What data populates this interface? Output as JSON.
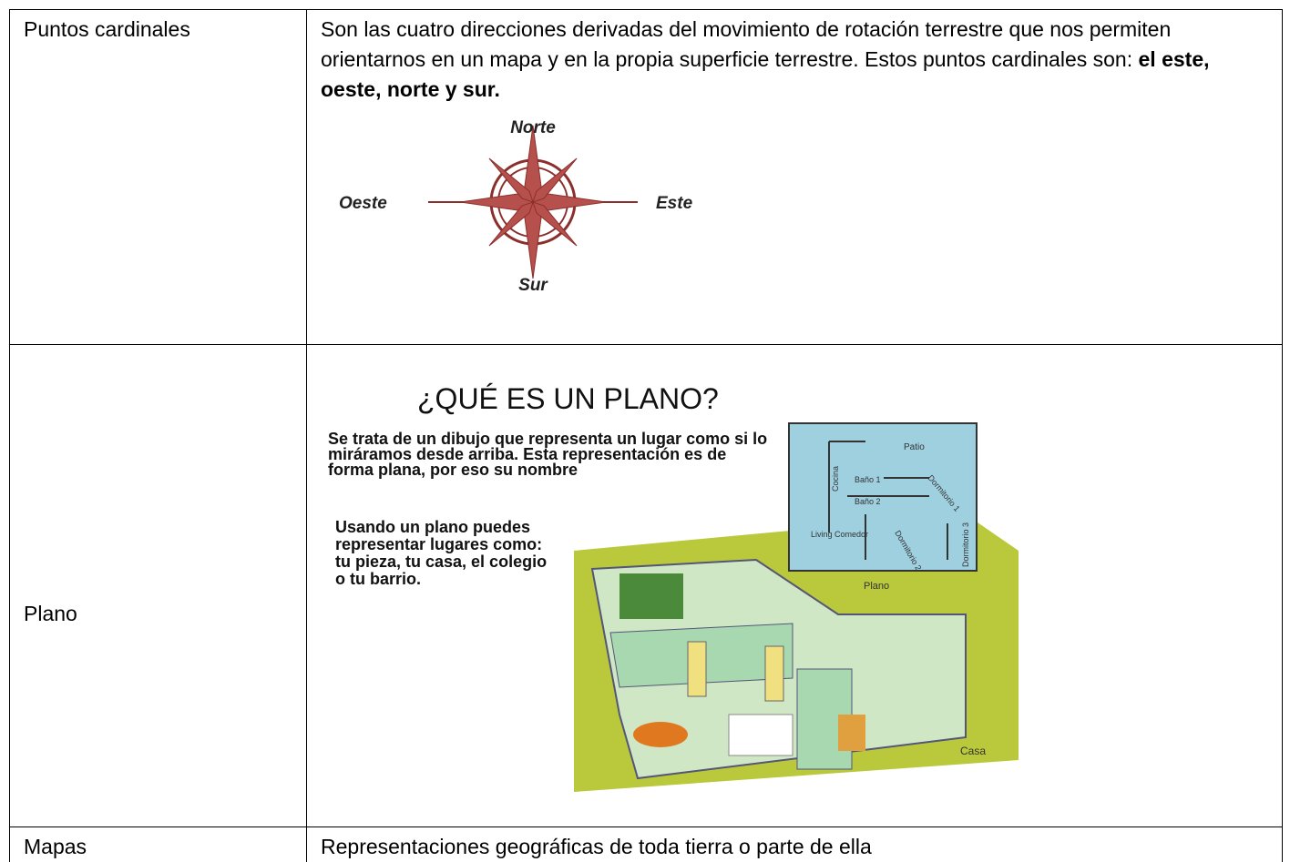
{
  "table": {
    "rows": [
      {
        "term": "Puntos cardinales",
        "definition": {
          "text": "Son las cuatro direcciones derivadas del movimiento de rotación terrestre que nos permiten orientarnos en un mapa y en la propia superficie terrestre. Estos puntos cardinales son: ",
          "bold": "el este, oeste, norte y sur."
        },
        "compass": {
          "north": "Norte",
          "west": "Oeste",
          "east": "Este",
          "south": "Sur"
        }
      },
      {
        "term": "Plano",
        "figure": {
          "title": "¿QUÉ ES UN PLANO?",
          "intro": "Se trata de un dibujo que representa un lugar como si lo miráramos desde arriba. Esta representación es de forma plana, por eso su nombre",
          "usage": "Usando un plano puedes representar lugares como: tu pieza, tu casa, el colegio o tu barrio.",
          "plan_labels": {
            "patio": "Patio",
            "cocina": "Cocina",
            "bano1": "Baño 1",
            "bano2": "Baño 2",
            "dormitorio1": "Dormitorio 1",
            "living": "Living Comedor",
            "dormitorio2": "Dormitorio 2",
            "dormitorio3": "Dormitorio 3"
          },
          "plan_caption": "Plano",
          "house_caption": "Casa"
        }
      },
      {
        "term": "Mapas",
        "definition": "Representaciones geográficas de toda tierra o parte de ella"
      }
    ]
  }
}
